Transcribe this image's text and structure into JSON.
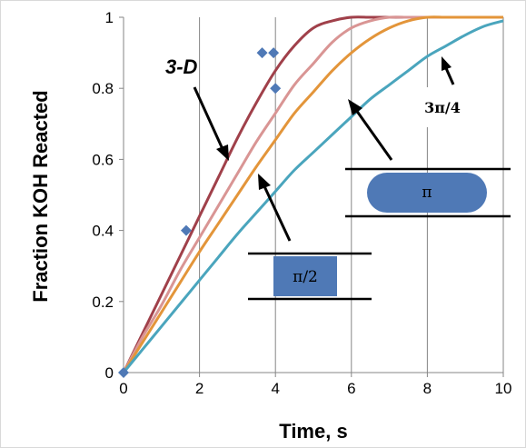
{
  "chart_data": {
    "type": "line",
    "xlabel": "Time, s",
    "ylabel": "Fraction  KOH Reacted",
    "xlim": [
      0,
      10
    ],
    "ylim": [
      0,
      1
    ],
    "x_ticks": [
      "0",
      "2",
      "4",
      "6",
      "8",
      "10"
    ],
    "y_ticks": [
      "0",
      "0.2",
      "0.4",
      "0.6",
      "0.8",
      "1"
    ],
    "grid": "vertical",
    "series": [
      {
        "color": "#a0404a",
        "x": [
          0,
          0.5,
          1,
          1.5,
          2,
          2.5,
          3,
          3.5,
          4,
          4.5,
          5,
          5.5,
          6,
          6.5,
          7,
          8,
          9,
          10
        ],
        "y": [
          0,
          0.11,
          0.22,
          0.33,
          0.44,
          0.55,
          0.66,
          0.76,
          0.85,
          0.92,
          0.97,
          0.99,
          1.0,
          1.0,
          1.0,
          1.0,
          1.0,
          1.0
        ]
      },
      {
        "color": "#d99594",
        "x": [
          0,
          0.5,
          1,
          1.5,
          2,
          2.5,
          3,
          3.5,
          4,
          4.5,
          5,
          5.5,
          6,
          6.5,
          7,
          7.5,
          8,
          9,
          10
        ],
        "y": [
          0,
          0.1,
          0.19,
          0.29,
          0.38,
          0.47,
          0.56,
          0.65,
          0.73,
          0.81,
          0.87,
          0.93,
          0.97,
          0.99,
          1.0,
          1.0,
          1.0,
          1.0,
          1.0
        ]
      },
      {
        "color": "#e3953a",
        "x": [
          0,
          0.5,
          1,
          1.5,
          2,
          2.5,
          3,
          3.5,
          4,
          4.5,
          5,
          5.5,
          6,
          6.5,
          7,
          7.5,
          8,
          8.5,
          9,
          10
        ],
        "y": [
          0,
          0.085,
          0.17,
          0.255,
          0.34,
          0.42,
          0.5,
          0.58,
          0.655,
          0.73,
          0.79,
          0.85,
          0.9,
          0.94,
          0.97,
          0.99,
          1.0,
          1.0,
          1.0,
          1.0
        ]
      },
      {
        "color": "#4aa5bd",
        "x": [
          0,
          0.5,
          1,
          1.5,
          2,
          2.5,
          3,
          3.5,
          4,
          4.5,
          5,
          5.5,
          6,
          6.5,
          7,
          7.5,
          8,
          8.5,
          9,
          9.5,
          10
        ],
        "y": [
          0,
          0.065,
          0.13,
          0.195,
          0.26,
          0.325,
          0.39,
          0.45,
          0.51,
          0.57,
          0.62,
          0.67,
          0.72,
          0.77,
          0.81,
          0.85,
          0.89,
          0.92,
          0.95,
          0.975,
          0.99
        ]
      }
    ],
    "markers": {
      "color": "#4f79b6",
      "points": [
        [
          0,
          0
        ],
        [
          1.65,
          0.4
        ],
        [
          3.65,
          0.9
        ],
        [
          3.95,
          0.9
        ],
        [
          4.0,
          0.8
        ]
      ]
    },
    "annotations": [
      {
        "text": "3-D",
        "style": "bold-italic"
      },
      {
        "text": "π/2",
        "box_color": "#4f79b6"
      },
      {
        "text": "π",
        "box_color": "#4f79b6"
      },
      {
        "text": "3π/4"
      }
    ]
  }
}
